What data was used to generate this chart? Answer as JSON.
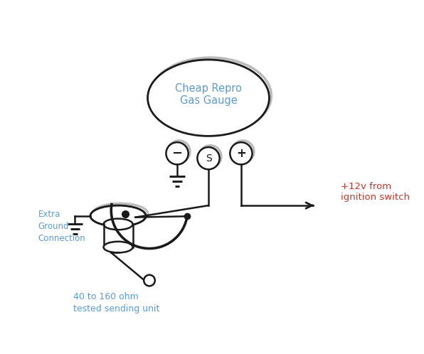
{
  "bg_color": "#ffffff",
  "text_color_label": "#5b9bd5",
  "text_color_red": "#c0392b",
  "dark": "#1a1a1a",
  "shadow": "#bbbbbb",
  "gauge_label": "Cheap Repro\nGas Gauge",
  "extra_ground_label": "Extra\nGround\nConnection",
  "sending_unit_label": "40 to 160 ohm\ntested sending unit",
  "ignition_label": "+12v from\nignition switch"
}
